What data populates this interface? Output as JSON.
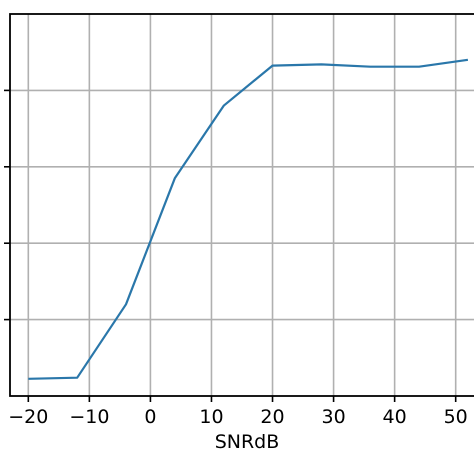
{
  "chart_data": {
    "type": "line",
    "title": "",
    "xlabel": "SNRdB",
    "ylabel": "",
    "xlim": [
      -23,
      53
    ],
    "ylim": [
      0.0,
      1.0
    ],
    "grid": true,
    "legend": "none",
    "x_ticks": [
      -20,
      -10,
      0,
      10,
      20,
      30,
      40,
      50
    ],
    "x_tick_labels": [
      "−20",
      "−10",
      "0",
      "10",
      "20",
      "30",
      "40",
      "50"
    ],
    "y_ticks": [
      0.2,
      0.4,
      0.6,
      0.8
    ],
    "y_tick_labels": [
      "",
      "",
      "",
      ""
    ],
    "series": [
      {
        "color": "#2a77aa",
        "x": [
          -20,
          -12,
          -4,
          4,
          12,
          20,
          28,
          36,
          44,
          52
        ],
        "y": [
          0.045,
          0.048,
          0.24,
          0.57,
          0.76,
          0.865,
          0.868,
          0.862,
          0.862,
          0.88
        ]
      }
    ]
  }
}
